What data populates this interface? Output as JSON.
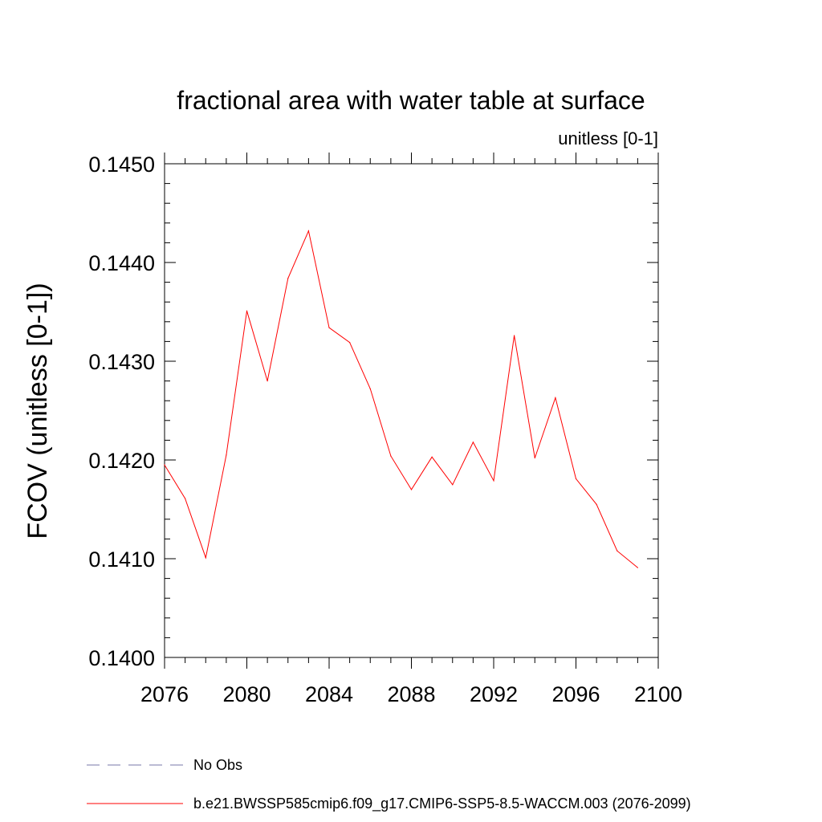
{
  "chart_data": {
    "type": "line",
    "title": "fractional area with water table at surface",
    "subtitle": "unitless [0-1]",
    "ylabel": "FCOV  (unitless [0-1])",
    "xlabel": "",
    "xlim": [
      2076,
      2100
    ],
    "ylim": [
      0.14,
      0.145
    ],
    "x_ticks": [
      "2076",
      "2080",
      "2084",
      "2088",
      "2092",
      "2096",
      "2100"
    ],
    "y_ticks": [
      "0.1400",
      "0.1410",
      "0.1420",
      "0.1430",
      "0.1440",
      "0.1450"
    ],
    "grid": false,
    "legend_position": "bottom-left",
    "series": [
      {
        "name": "b.e21.BWSSP585cmip6.f09_g17.CMIP6-SSP5-8.5-WACCM.003 (2076-2099)",
        "color": "#ff0000",
        "style": "solid",
        "x": [
          2076,
          2077,
          2078,
          2079,
          2080,
          2081,
          2082,
          2083,
          2084,
          2085,
          2086,
          2087,
          2088,
          2089,
          2090,
          2091,
          2092,
          2093,
          2094,
          2095,
          2096,
          2097,
          2098,
          2099
        ],
        "values": [
          0.14195,
          0.14161,
          0.14101,
          0.14205,
          0.14351,
          0.1428,
          0.14384,
          0.14432,
          0.14334,
          0.14319,
          0.14272,
          0.14204,
          0.1417,
          0.14203,
          0.14175,
          0.14218,
          0.14179,
          0.14326,
          0.14202,
          0.14263,
          0.14181,
          0.14155,
          0.14108,
          0.14091
        ]
      }
    ],
    "legend": [
      {
        "label": "No Obs",
        "color": "#7777aa",
        "style": "dashed"
      },
      {
        "label": "b.e21.BWSSP585cmip6.f09_g17.CMIP6-SSP5-8.5-WACCM.003 (2076-2099)",
        "color": "#ff0000",
        "style": "solid"
      }
    ]
  }
}
